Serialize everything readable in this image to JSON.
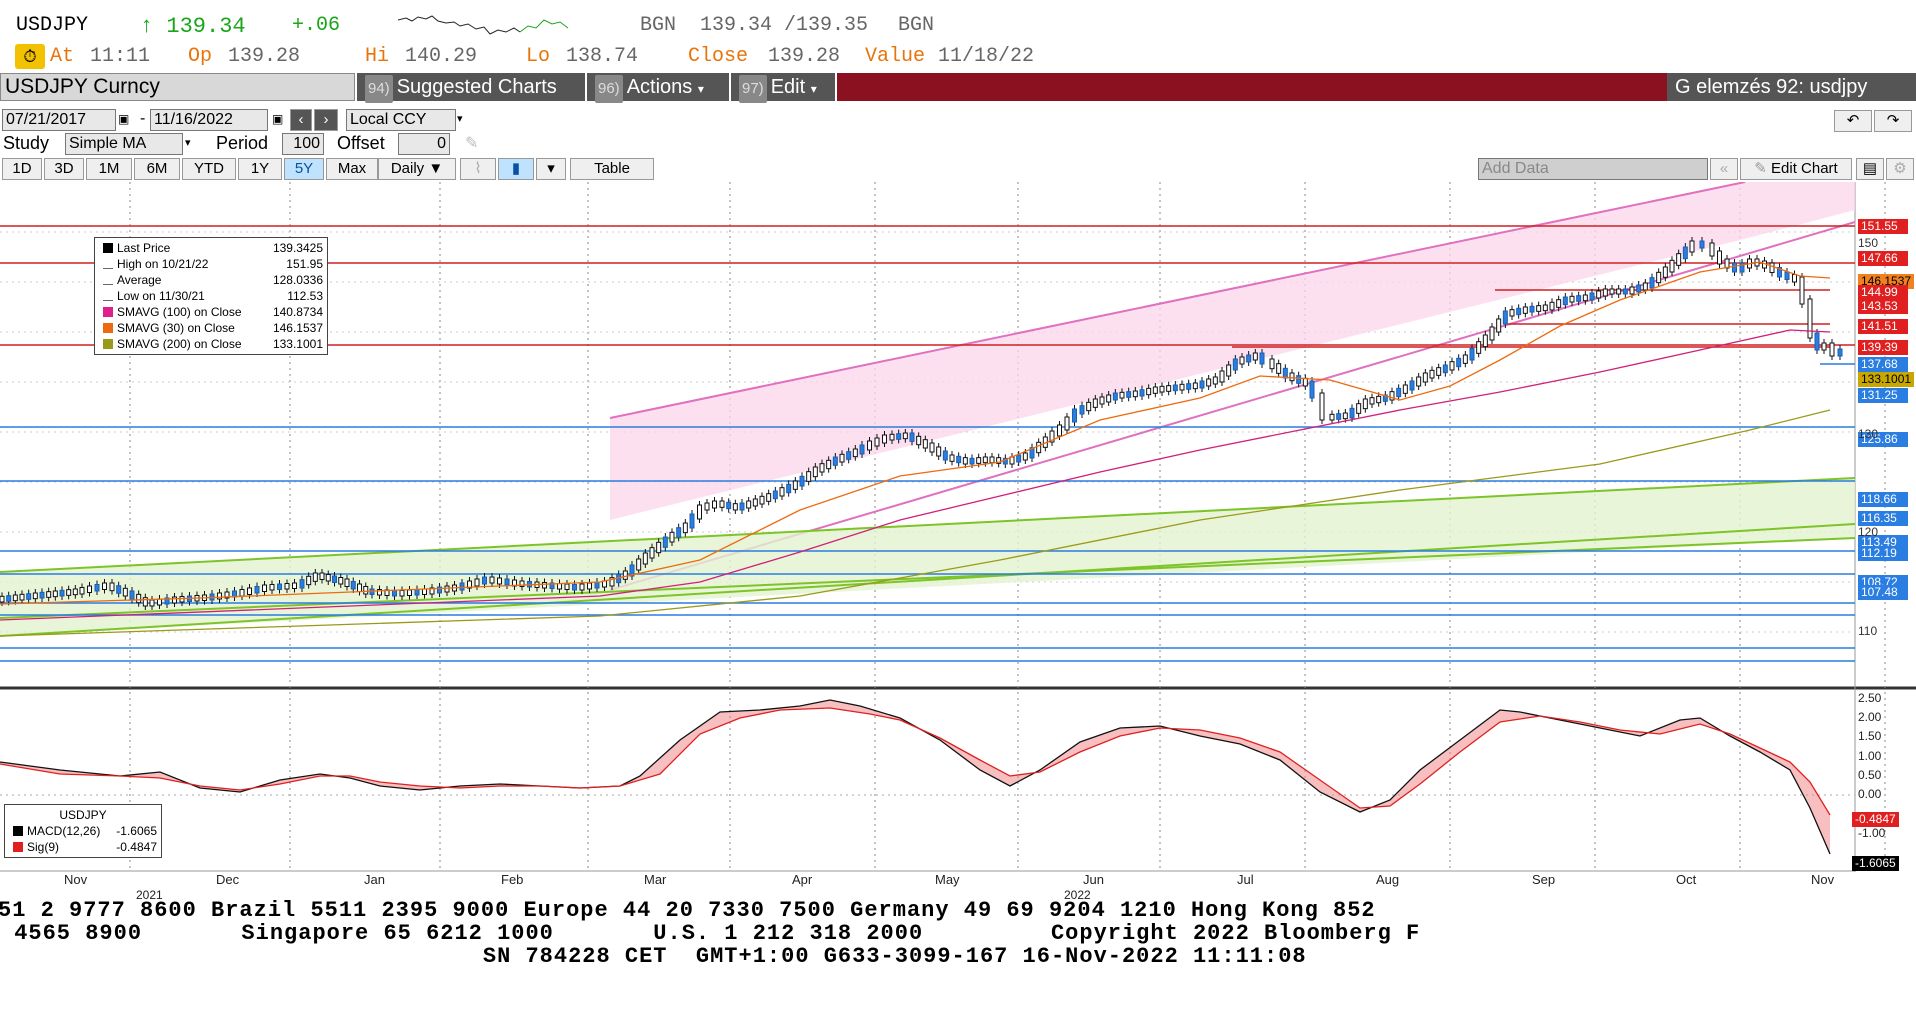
{
  "quote": {
    "ticker": "USDJPY",
    "last": "↑ 139.34",
    "change": "+.06",
    "source_left": "BGN",
    "bid_ask": "139.34 /139.35",
    "source_right": "BGN",
    "at_label": "At",
    "at_time": "11:11",
    "op_label": "Op",
    "op_value": "139.28",
    "hi_label": "Hi",
    "hi_value": "140.29",
    "lo_label": "Lo",
    "lo_value": "138.74",
    "close_label": "Close",
    "close_value": "139.28",
    "value_label": "Value",
    "value_date": "11/18/22"
  },
  "menubar": {
    "security": "USDJPY Curncy",
    "suggested_num": "94)",
    "suggested_label": "Suggested Charts",
    "actions_num": "96)",
    "actions_label": "Actions",
    "edit_num": "97)",
    "edit_label": "Edit",
    "function_text": "G elemzés 92: usdjpy"
  },
  "controls": {
    "start_date": "07/21/2017",
    "end_date": "11/16/2022",
    "currency": "Local CCY",
    "study_label": "Study",
    "study_value": "Simple MA",
    "period_label": "Period",
    "period_value": "100",
    "offset_label": "Offset",
    "offset_value": "0",
    "ranges": [
      "1D",
      "3D",
      "1M",
      "6M",
      "YTD",
      "1Y",
      "5Y",
      "Max"
    ],
    "selected_range": "5Y",
    "frequency": "Daily ▼",
    "table_label": "Table",
    "add_data_placeholder": "Add Data",
    "edit_chart_label": "Edit Chart"
  },
  "legend_price": {
    "rows": [
      {
        "label": "Last Price",
        "value": "139.3425",
        "color": "#000000"
      },
      {
        "label": "High on 10/21/22",
        "value": "151.95",
        "color": ""
      },
      {
        "label": "Average",
        "value": "128.0336",
        "color": ""
      },
      {
        "label": "Low on 11/30/21",
        "value": "112.53",
        "color": ""
      },
      {
        "label": "SMAVG (100)  on Close",
        "value": "140.8734",
        "color": "#e0208a"
      },
      {
        "label": "SMAVG (30)  on Close",
        "value": "146.1537",
        "color": "#ee6a10"
      },
      {
        "label": "SMAVG (200)  on Close",
        "value": "133.1001",
        "color": "#9a9a1a"
      }
    ]
  },
  "legend_macd": {
    "title": "USDJPY",
    "rows": [
      {
        "label": "MACD(12,26)",
        "value": "-1.6065",
        "color": "#000000"
      },
      {
        "label": "Sig(9)",
        "value": "-0.4847",
        "color": "#e02020"
      }
    ]
  },
  "price_tags": [
    {
      "text": "151.55",
      "bg": "#e02020",
      "fg": "#ffffff",
      "level": 151.55
    },
    {
      "text": "147.66",
      "bg": "#e02020",
      "fg": "#ffffff",
      "level": 147.66
    },
    {
      "text": "146.1537",
      "bg": "#f08020",
      "fg": "#000000",
      "level": 146.1537
    },
    {
      "text": "144.99",
      "bg": "#e02020",
      "fg": "#ffffff",
      "level": 144.99
    },
    {
      "text": "143.53",
      "bg": "#e02020",
      "fg": "#ffffff",
      "level": 143.53
    },
    {
      "text": "141.51",
      "bg": "#e02020",
      "fg": "#ffffff",
      "level": 141.51
    },
    {
      "text": "139.39",
      "bg": "#e02020",
      "fg": "#ffffff",
      "level": 139.39
    },
    {
      "text": "137.68",
      "bg": "#2a7de1",
      "fg": "#ffffff",
      "level": 137.68
    },
    {
      "text": "133.1001",
      "bg": "#c8a800",
      "fg": "#000000",
      "level": 133.1001
    },
    {
      "text": "131.25",
      "bg": "#2a7de1",
      "fg": "#ffffff",
      "level": 131.25
    },
    {
      "text": "125.86",
      "bg": "#2a7de1",
      "fg": "#ffffff",
      "level": 125.86
    },
    {
      "text": "118.66",
      "bg": "#2a7de1",
      "fg": "#ffffff",
      "level": 118.66
    },
    {
      "text": "116.35",
      "bg": "#2a7de1",
      "fg": "#ffffff",
      "level": 116.35
    },
    {
      "text": "113.49",
      "bg": "#2a7de1",
      "fg": "#ffffff",
      "level": 113.49
    },
    {
      "text": "112.19",
      "bg": "#2a7de1",
      "fg": "#ffffff",
      "level": 112.19
    },
    {
      "text": "108.72",
      "bg": "#2a7de1",
      "fg": "#ffffff",
      "level": 108.72
    },
    {
      "text": "107.48",
      "bg": "#2a7de1",
      "fg": "#ffffff",
      "level": 107.48
    }
  ],
  "y_ticks": [
    "150",
    "130",
    "120",
    "110"
  ],
  "macd_ticks": [
    "2.50",
    "2.00",
    "1.50",
    "1.00",
    "0.50",
    "0.00",
    "-1.00"
  ],
  "macd_tags": [
    {
      "text": "-0.4847",
      "bg": "#e02020",
      "fg": "#ffffff"
    },
    {
      "text": "-1.6065",
      "bg": "#000000",
      "fg": "#ffffff"
    }
  ],
  "x_months": [
    "Nov",
    "Dec",
    "Jan",
    "Feb",
    "Mar",
    "Apr",
    "May",
    "Jun",
    "Jul",
    "Aug",
    "Sep",
    "Oct",
    "Nov"
  ],
  "x_years": [
    "2021",
    "2022"
  ],
  "footer": {
    "line1": "51 2 9777 8600 Brazil 5511 2395 9000 Europe 44 20 7330 7500 Germany 49 69 9204 1210 Hong Kong 852",
    "line2": " 4565 8900       Singapore 65 6212 1000       U.S. 1 212 318 2000         Copyright 2022 Bloomberg F",
    "line3": "                                  SN 784228 CET  GMT+1:00 G633-3099-167 16-Nov-2022 11:11:08"
  }
}
